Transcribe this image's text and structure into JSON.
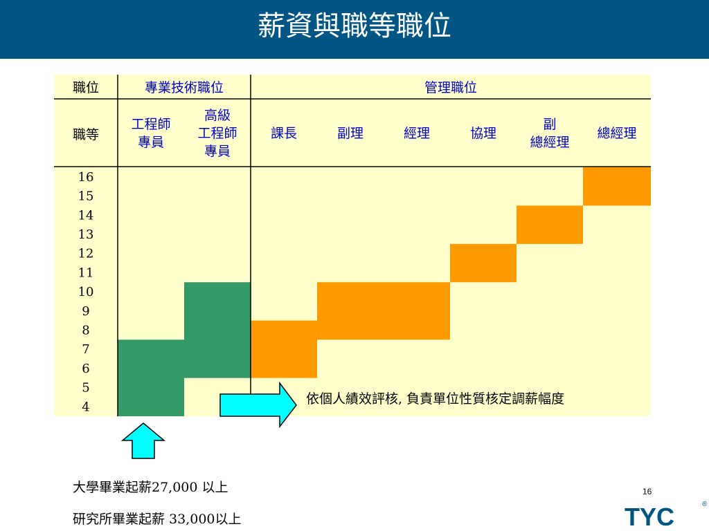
{
  "slide": {
    "title": "薪資與職等職位",
    "page_number": "16",
    "logo_text": "TYC",
    "registered_mark": "®"
  },
  "table": {
    "header_position_label": "職位",
    "header_grade_label": "職等",
    "group_technical": "專業技術職位",
    "group_management": "管理職位",
    "columns": [
      {
        "lines": [
          "工程師",
          "專員"
        ],
        "group": "technical",
        "color": "#0000cc"
      },
      {
        "lines": [
          "高級",
          "工程師",
          "專員"
        ],
        "group": "technical",
        "color": "#0000cc"
      },
      {
        "lines": [
          "課長"
        ],
        "group": "management",
        "color": "#0000cc"
      },
      {
        "lines": [
          "副理"
        ],
        "group": "management",
        "color": "#0000cc"
      },
      {
        "lines": [
          "經理"
        ],
        "group": "management",
        "color": "#0000cc"
      },
      {
        "lines": [
          "協理"
        ],
        "group": "management",
        "color": "#0000cc"
      },
      {
        "lines": [
          "副",
          "總經理"
        ],
        "group": "management",
        "color": "#0000cc"
      },
      {
        "lines": [
          "總經理"
        ],
        "group": "management",
        "color": "#0000cc"
      }
    ],
    "grades": [
      "16",
      "15",
      "14",
      "13",
      "12",
      "11",
      "10",
      "9",
      "8",
      "7",
      "6",
      "5",
      "4"
    ],
    "ranges": [
      {
        "column": "工程師專員",
        "min_grade": 4,
        "max_grade": 7,
        "color": "#339966"
      },
      {
        "column": "高級工程師專員",
        "min_grade": 6,
        "max_grade": 10,
        "color": "#339966"
      },
      {
        "column": "課長",
        "min_grade": 6,
        "max_grade": 8,
        "color": "#ff9900"
      },
      {
        "column": "副理",
        "min_grade": 8,
        "max_grade": 10,
        "color": "#ff9900"
      },
      {
        "column": "經理",
        "min_grade": 8,
        "max_grade": 10,
        "color": "#ff9900"
      },
      {
        "column": "協理",
        "min_grade": 11,
        "max_grade": 12,
        "color": "#ff9900"
      },
      {
        "column": "副總經理",
        "min_grade": 13,
        "max_grade": 14,
        "color": "#ff9900"
      },
      {
        "column": "總經理",
        "min_grade": 15,
        "max_grade": 16,
        "color": "#ff9900"
      }
    ],
    "background_color": "#ffffcc"
  },
  "annotations": {
    "salary_adjustment": "依個人績效評核, 負責單位性質核定調薪幅度",
    "bachelor_starting_salary": "大學畢業起薪27,000 以上",
    "master_starting_salary": "研究所畢業起薪 33,000以上",
    "arrow_color": "#00ffff"
  }
}
